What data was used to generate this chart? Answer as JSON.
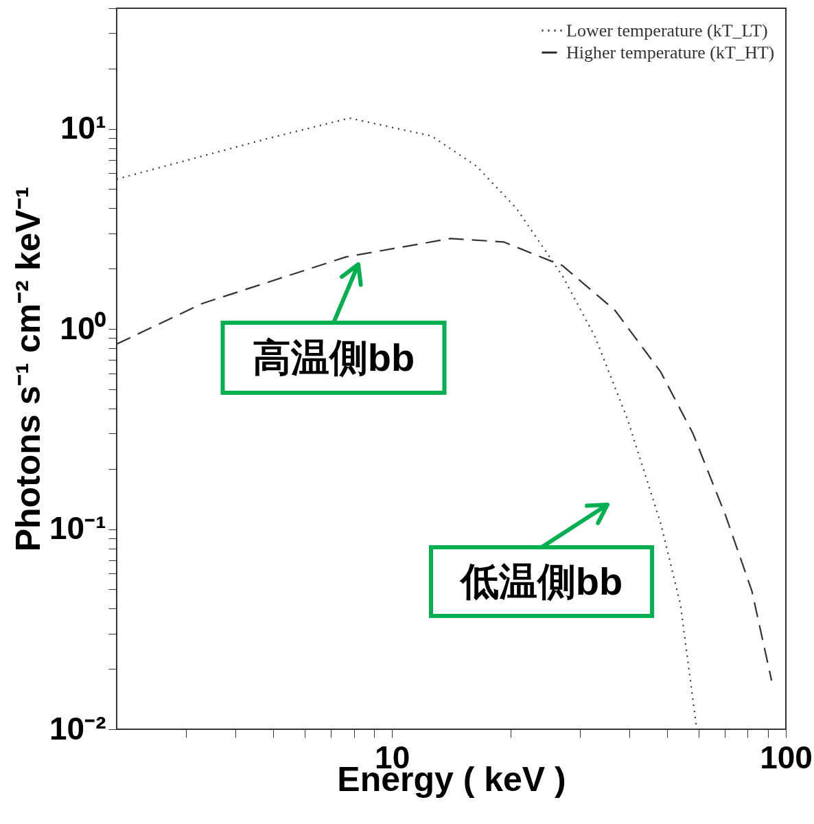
{
  "chart_data": {
    "type": "line",
    "xlabel": "Energy ( keV )",
    "ylabel": "Photons s⁻¹ cm⁻² keV⁻¹",
    "log": "xy",
    "grid": false,
    "legend": "top right",
    "marker": "none",
    "xlim": [
      2,
      100
    ],
    "xticks": [
      {
        "value": 3,
        "label": null
      },
      {
        "value": 4,
        "label": null
      },
      {
        "value": 5,
        "label": null
      },
      {
        "value": 6,
        "label": null
      },
      {
        "value": 7,
        "label": null
      },
      {
        "value": 8,
        "label": null
      },
      {
        "value": 9,
        "label": null
      },
      10,
      {
        "value": 20,
        "label": null
      },
      {
        "value": 30,
        "label": null
      },
      {
        "value": 40,
        "label": null
      },
      {
        "value": 50,
        "label": null
      },
      {
        "value": 60,
        "label": null
      },
      {
        "value": 70,
        "label": null
      },
      {
        "value": 80,
        "label": null
      },
      {
        "value": 90,
        "label": null
      },
      100
    ],
    "ylim": [
      0.01,
      40
    ],
    "yticks": [
      {
        "value": 0.01,
        "label": "10⁻²"
      },
      {
        "value": 0.02,
        "label": null
      },
      {
        "value": 0.03,
        "label": null
      },
      {
        "value": 0.04,
        "label": null
      },
      {
        "value": 0.05,
        "label": null
      },
      {
        "value": 0.06,
        "label": null
      },
      {
        "value": 0.07,
        "label": null
      },
      {
        "value": 0.08,
        "label": null
      },
      {
        "value": 0.09,
        "label": null
      },
      {
        "value": 0.1,
        "label": "10⁻¹"
      },
      {
        "value": 0.2,
        "label": null
      },
      {
        "value": 0.3,
        "label": null
      },
      {
        "value": 0.4,
        "label": null
      },
      {
        "value": 0.5,
        "label": null
      },
      {
        "value": 0.6,
        "label": null
      },
      {
        "value": 0.7,
        "label": null
      },
      {
        "value": 0.8,
        "label": null
      },
      {
        "value": 0.9,
        "label": null
      },
      {
        "value": 1,
        "label": "10⁰"
      },
      {
        "value": 2,
        "label": null
      },
      {
        "value": 3,
        "label": null
      },
      {
        "value": 4,
        "label": null
      },
      {
        "value": 5,
        "label": null
      },
      {
        "value": 6,
        "label": null
      },
      {
        "value": 7,
        "label": null
      },
      {
        "value": 8,
        "label": null
      },
      {
        "value": 9,
        "label": null
      },
      {
        "value": 10,
        "label": "10¹"
      },
      {
        "value": 20,
        "label": null
      },
      {
        "value": 30,
        "label": null
      },
      {
        "value": 40,
        "label": null
      }
    ],
    "series": [
      {
        "name": "Lower temperature (kT_LT)",
        "color": "#333333",
        "line_style": "dotted",
        "x": [
          2.0,
          3.3,
          4.8,
          7.8,
          12.6,
          16.4,
          20.7,
          27.1,
          32.8,
          39.7,
          48.1,
          54,
          59.4
        ],
        "values": [
          5.6,
          7.3,
          8.9,
          11.3,
          9.2,
          6.5,
          4.0,
          1.84,
          0.91,
          0.35,
          0.107,
          0.042,
          0.01
        ]
      },
      {
        "name": "Higher temperature (kT_HT)",
        "color": "#333333",
        "line_style": "dashed",
        "x": [
          2.0,
          3.3,
          7.65,
          14.1,
          19.2,
          27.1,
          36.8,
          48.1,
          58.1,
          70.4,
          82,
          92
        ],
        "values": [
          0.84,
          1.34,
          2.29,
          2.83,
          2.72,
          2.07,
          1.24,
          0.61,
          0.3,
          0.116,
          0.049,
          0.0175
        ]
      }
    ],
    "annotations": [
      "高温側bb",
      "低温側bb"
    ]
  }
}
